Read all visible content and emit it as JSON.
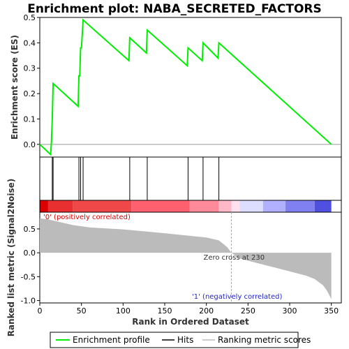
{
  "chart_data": {
    "type": "line",
    "title": "Enrichment plot: NABA_SECRETED_FACTORS",
    "top_panel": {
      "ylabel": "Enrichment score (ES)",
      "ylim": [
        -0.05,
        0.5
      ],
      "yticks": [
        "0.5",
        "0.4",
        "0.3",
        "0.2",
        "0.1",
        "0.0"
      ],
      "ytick_values": [
        0.5,
        0.4,
        0.3,
        0.2,
        0.1,
        0.0
      ],
      "series": [
        {
          "name": "Enrichment profile",
          "color": "#00ee00",
          "x": [
            0,
            13,
            14,
            15,
            16,
            46,
            47,
            48,
            49,
            50,
            52,
            107,
            108,
            128,
            129,
            177,
            178,
            195,
            196,
            214,
            215,
            350
          ],
          "y": [
            0.0,
            -0.04,
            0.01,
            0.1,
            0.24,
            0.15,
            0.27,
            0.27,
            0.38,
            0.38,
            0.49,
            0.33,
            0.42,
            0.36,
            0.45,
            0.31,
            0.38,
            0.33,
            0.4,
            0.34,
            0.4,
            0.0
          ]
        }
      ]
    },
    "hits": {
      "name": "Hits",
      "x": [
        15,
        16,
        47,
        49,
        52,
        108,
        129,
        178,
        196,
        215
      ]
    },
    "bottom_panel": {
      "ylabel": "Ranked list metric (Signal2Noise)",
      "xlabel": "Rank in Ordered Dataset",
      "ylim": [
        -1.05,
        0.85
      ],
      "yticks": [
        "0.5",
        "0.0",
        "-0.5",
        "-1.0"
      ],
      "ytick_values": [
        0.5,
        0.0,
        -0.5,
        -1.0
      ],
      "xticks": [
        "0",
        "50",
        "100",
        "150",
        "200",
        "250",
        "300",
        "350"
      ],
      "xtick_values": [
        0,
        50,
        100,
        150,
        200,
        250,
        300,
        350
      ],
      "xlim": [
        0,
        362
      ],
      "metric_points": {
        "x": [
          0,
          10,
          20,
          40,
          60,
          100,
          150,
          200,
          215,
          225,
          230,
          240,
          280,
          320,
          330,
          340,
          345,
          350
        ],
        "y": [
          0.72,
          0.7,
          0.66,
          0.58,
          0.53,
          0.49,
          0.41,
          0.32,
          0.26,
          0.12,
          0.0,
          -0.12,
          -0.3,
          -0.48,
          -0.55,
          -0.68,
          -0.8,
          -0.97
        ]
      },
      "zero_cross_label": "Zero cross at 230",
      "zero_cross_x": 230,
      "positive_label": "'0' (positively correlated)",
      "negative_label": "'1' (negatively correlated)"
    },
    "legend": {
      "placement": "bottom",
      "entries": [
        "Enrichment profile",
        "Hits",
        "Ranking metric scores"
      ]
    }
  },
  "colors": {
    "enrichment": "#00ee00",
    "positive_text": "#dd0000",
    "negative_text": "#2222cc",
    "metric_fill": "#bbbbbb"
  }
}
